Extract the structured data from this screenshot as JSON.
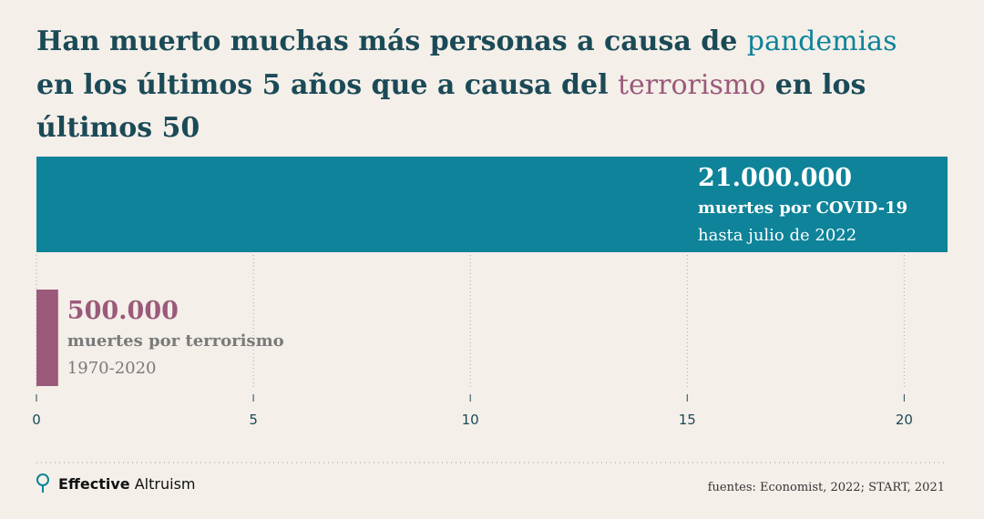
{
  "chart_data": {
    "type": "bar",
    "orientation": "horizontal",
    "title": [
      [
        "Han muerto muchas más personas a causa de ",
        "pandemias"
      ],
      [
        "en los últimos 5 años que a causa del ",
        "terrorismo",
        " en los"
      ],
      [
        "últimos 50"
      ]
    ],
    "categories": [
      "muertes por COVID-19",
      "muertes por terrorismo"
    ],
    "periods": [
      "hasta julio de 2022",
      "1970-2020"
    ],
    "values": [
      21,
      0.5
    ],
    "value_labels": [
      "21.000.000",
      "500.000"
    ],
    "colors": [
      "#0e8399",
      "#9b5a7a"
    ],
    "xlim": [
      0,
      21
    ],
    "xticks": [
      0,
      5,
      10,
      15,
      20
    ],
    "grid": true,
    "logo": [
      "Effective",
      "Altruism"
    ],
    "source": "fuentes: Economist, 2022; START, 2021"
  }
}
